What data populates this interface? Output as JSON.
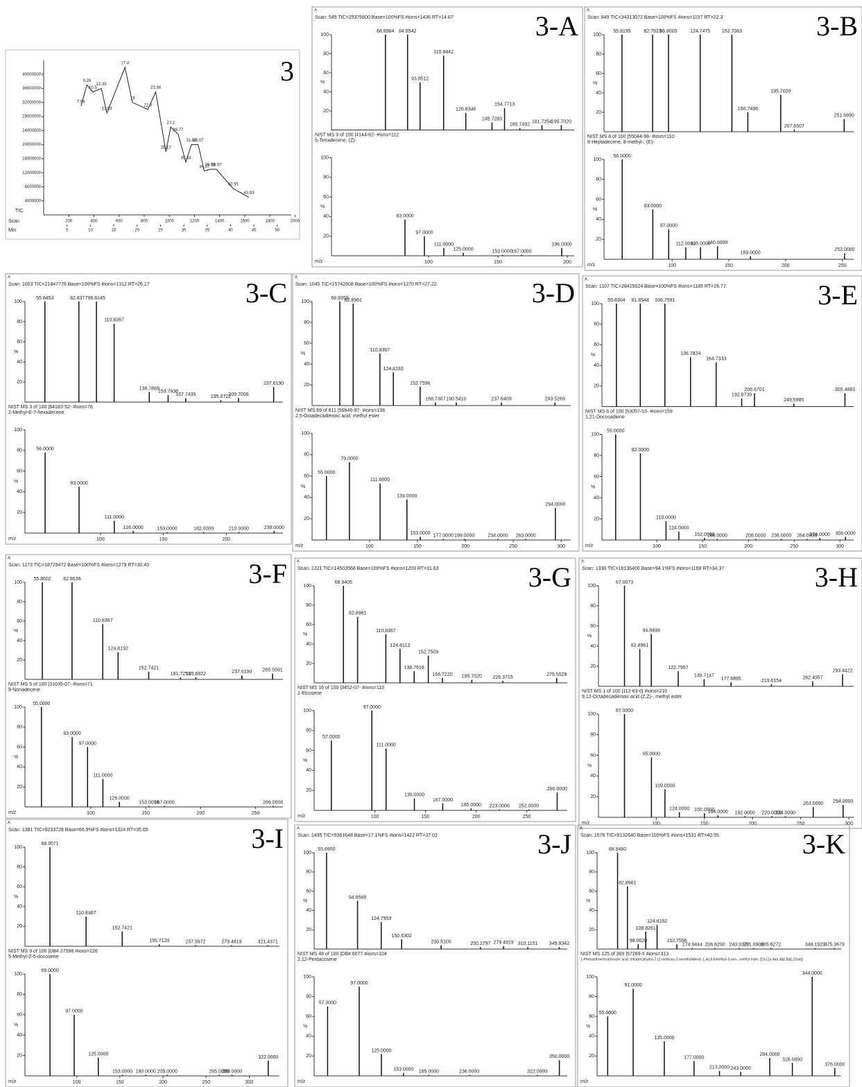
{
  "spectrum_yticks": [
    20,
    40,
    60,
    80,
    100
  ],
  "yaxis_label": "%",
  "xaxis_label": "m/z",
  "corner_label": "A",
  "tic": {
    "label": "3",
    "trace_label": "TIC",
    "scan_label": "Scan",
    "min_label": "Min",
    "xlim": [
      0,
      53
    ],
    "ylim": [
      0,
      44000000
    ],
    "yticks": [
      4000000,
      8000000,
      12000000,
      16000000,
      20000000,
      24000000,
      28000000,
      32000000,
      36000000,
      40000000
    ],
    "xticks": [
      5,
      10,
      15,
      20,
      25,
      30,
      35,
      40,
      45,
      50
    ],
    "scan_lim": [
      0,
      1970
    ],
    "scan_ticks": [
      200,
      400,
      600,
      800,
      1000,
      1200,
      1400,
      1600,
      1800,
      2000
    ],
    "rt": [
      7.98,
      9.26,
      10.5,
      12.35,
      13.53,
      17.4,
      19,
      22.3,
      23.98,
      26.17,
      27.2,
      28.77,
      30.43,
      31.62,
      33.07,
      34.37,
      35.63,
      36.97,
      40.55,
      43.93
    ],
    "intensity": [
      31000000,
      37000000,
      35000000,
      36000000,
      29000000,
      42000000,
      32000000,
      30000000,
      35000000,
      18000000,
      25000000,
      23000000,
      15000000,
      20000000,
      20000000,
      12500000,
      13000000,
      13000000,
      7500000,
      5000000
    ]
  },
  "panels": [
    {
      "label": "3-A",
      "header": "Scan: 545  TIC=25376800  Base=100%FS  #ions=1436  RT=14.67",
      "xlim": [
        30,
        205
      ],
      "xticks": [
        100,
        150,
        200
      ],
      "top": {
        "mz": [
          68.8964,
          84.8542,
          93.8512,
          110.8442,
          126.8346,
          145.7283,
          154.7713,
          165.7492,
          181.7354,
          195.702
        ],
        "intensity": [
          100,
          100,
          50,
          78,
          18,
          8,
          23,
          2,
          5,
          5
        ],
        "labels": [
          "68.8964",
          "84.8542",
          "93.8512",
          "110.8442",
          "126.8346",
          "145.7283",
          "154.7713",
          "165.7492",
          "181.7354",
          "195.7020"
        ]
      },
      "library": "NIST MS 9 of 100 |4144-62-  #ions=112",
      "compound": "5-Tetradecene, (Z)-",
      "bottom": {
        "mz": [
          83,
          97,
          111,
          125,
          153,
          167,
          196
        ],
        "intensity": [
          37,
          20,
          8,
          3,
          1,
          1,
          8
        ],
        "labels": [
          "83.0000",
          "97.0000",
          "111.0000",
          "125.0000",
          "153.0000",
          "167.0000",
          "196.0000"
        ]
      }
    },
    {
      "label": "3-B",
      "header": "Scan: 849  TIC=34313072  Base=100%FS  #ions=1157  RT=22.3",
      "xlim": [
        40,
        260
      ],
      "xticks": [
        100,
        150,
        200,
        250
      ],
      "top": {
        "mz": [
          55.8195,
          82.7923,
          96.8005,
          124.7475,
          152.7063,
          166.7496,
          195.702,
          207.6507,
          251.589
        ],
        "intensity": [
          100,
          100,
          100,
          100,
          100,
          20,
          38,
          2,
          13
        ],
        "labels": [
          "55.8195",
          "82.7923",
          "96.8005",
          "124.7475",
          "152.7063",
          "166.7496",
          "195.7020",
          "207.6507",
          "251.5890"
        ]
      },
      "library": "NIST MS 8 of 100 |55044-98-  #ions=110",
      "compound": "8-Heptadecene, 8-methyl-, (E)-",
      "bottom": {
        "mz": [
          56,
          83,
          97,
          112,
          125,
          140,
          169,
          252
        ],
        "intensity": [
          100,
          50,
          30,
          12,
          12,
          13,
          3,
          6
        ],
        "labels": [
          "56.0000",
          "83.0000",
          "97.0000",
          "112.0000",
          "125.0000",
          "140.0000",
          "169.0000",
          "252.0000"
        ]
      }
    },
    {
      "label": "3-C",
      "header": "Scan: 1003  TIC=21847776  Base=100%FS  #ions=1312  RT=26.17",
      "xlim": [
        40,
        245
      ],
      "xticks": [
        100,
        150,
        200
      ],
      "top": {
        "mz": [
          55.8453,
          82.8377,
          96.8145,
          110.8367,
          138.7869,
          153.7638,
          167.7435,
          195.6722,
          209.7006,
          237.619
        ],
        "intensity": [
          100,
          100,
          100,
          78,
          10,
          7,
          4,
          2,
          4,
          15
        ],
        "labels": [
          "55.8453",
          "82.8377",
          "96.8145",
          "110.8367",
          "138.7869",
          "153.7638",
          "167.7435",
          "195.6722",
          "209.7006",
          "237.6190"
        ]
      },
      "library": "NIST MS 3 of 100 |64183-52-  #ions=76",
      "compound": "2-Methyl-E-7-hexadecene",
      "bottom": {
        "mz": [
          56,
          83,
          111,
          126,
          153,
          182,
          210,
          238
        ],
        "intensity": [
          78,
          45,
          12,
          2,
          1,
          1,
          1,
          2
        ],
        "labels": [
          "56.0000",
          "83.0000",
          "111.0000",
          "126.0000",
          "153.0000",
          "182.0000",
          "210.0000",
          "238.0000"
        ]
      }
    },
    {
      "label": "3-D",
      "header": "Scan: 1045  TIC=15742608  Base=100%FS  #ions=1270  RT=27.22",
      "xlim": [
        40,
        310
      ],
      "xticks": [
        100,
        150,
        200,
        250,
        300
      ],
      "top": {
        "mz": [
          68.9359,
          82.8961,
          110.8367,
          124.8192,
          152.7596,
          168.7307,
          190.541,
          237.6409,
          293.5269
        ],
        "intensity": [
          100,
          98,
          50,
          32,
          18,
          3,
          3,
          3,
          3
        ],
        "labels": [
          "68.9359",
          "82.8961",
          "110.8367",
          "124.8192",
          "152.7596",
          "168.7307",
          "190.5410",
          "237.6409",
          "293.5269"
        ]
      },
      "library": "NIST MS 69 of 611 |56846-97-  #ions=138",
      "compound": "2,5-Octadecadienoic acid, methyl ester",
      "bottom": {
        "mz": [
          55,
          79,
          111,
          139,
          153,
          177,
          199,
          234,
          263,
          294
        ],
        "intensity": [
          60,
          73,
          53,
          38,
          3,
          1,
          1,
          1,
          1,
          30
        ],
        "labels": [
          "55.0000",
          "79.0000",
          "111.0000",
          "139.0000",
          "153.0000",
          "177.0000",
          "199.0000",
          "234.0000",
          "263.0000",
          "294.0000"
        ]
      }
    },
    {
      "label": "3-E",
      "header": "Scan: 1107  TIC=28415024  Base=100%FS  #ions=1185  RT=28.77",
      "xlim": [
        40,
        315
      ],
      "xticks": [
        100,
        150,
        200,
        250,
        300
      ],
      "top": {
        "mz": [
          55.8304,
          81.8548,
          108.7591,
          136.7824,
          164.7333,
          192.6739,
          206.6701,
          249.5985,
          305.4883
        ],
        "intensity": [
          100,
          100,
          100,
          48,
          43,
          8,
          13,
          3,
          13
        ],
        "labels": [
          "55.8304",
          "81.8548",
          "108.7591",
          "136.7824",
          "164.7333",
          "192.6739",
          "206.6701",
          "249.5985",
          "305.4883"
        ]
      },
      "library": "NIST MS 6 of 100 |53057-53-  #ions=159",
      "compound": "1,21-Docosadiene",
      "bottom": {
        "mz": [
          55,
          82,
          110,
          124,
          152,
          166,
          208,
          236,
          264,
          278,
          306
        ],
        "intensity": [
          100,
          82,
          18,
          8,
          2,
          1,
          1,
          1,
          1,
          2,
          3
        ],
        "labels": [
          "55.0000",
          "82.0000",
          "110.0000",
          "124.0000",
          "152.0000",
          "166.0000",
          "208.0000",
          "236.0000",
          "264.0000",
          "278.0000",
          "306.0000"
        ]
      }
    },
    {
      "label": "3-F",
      "header": "Scan: 1173  TIC=18729472  Base=100%FS  #ions=1279  RT=30.43",
      "xlim": [
        40,
        275
      ],
      "xticks": [
        100,
        150,
        200,
        250
      ],
      "top": {
        "mz": [
          55.8602,
          82.8636,
          110.8367,
          124.8192,
          152.7421,
          181.7251,
          195.6822,
          237.619,
          265.5591
        ],
        "intensity": [
          100,
          100,
          57,
          28,
          8,
          2,
          2,
          4,
          6
        ],
        "labels": [
          "55.8602",
          "82.8636",
          "110.8367",
          "124.8192",
          "152.7421",
          "181.7251",
          "195.6822",
          "237.6190",
          "265.5591"
        ]
      },
      "library": "NIST MS 5 of 100 |31035-07-  #ions=71",
      "compound": "9-Nonadecene",
      "bottom": {
        "mz": [
          55,
          83,
          97,
          111,
          126,
          153,
          167,
          266
        ],
        "intensity": [
          100,
          70,
          60,
          28,
          5,
          1,
          1,
          1
        ],
        "labels": [
          "55.0000",
          "83.0000",
          "97.0000",
          "111.0000",
          "126.0000",
          "153.0000",
          "167.0000",
          "266.0000"
        ]
      }
    },
    {
      "label": "3-G",
      "header": "Scan: 1221  TIC=14503568  Base=100%FS  #ions=1203  RT=31.63",
      "xlim": [
        40,
        290
      ],
      "xticks": [
        100,
        150,
        200,
        250
      ],
      "top": {
        "mz": [
          68.9405,
          82.8961,
          110.8367,
          124.8113,
          138.7618,
          152.7509,
          166.722,
          195.702,
          226.3715,
          279.5528
        ],
        "intensity": [
          100,
          68,
          50,
          35,
          12,
          28,
          5,
          3,
          2,
          5
        ],
        "labels": [
          "68.9405",
          "82.8961",
          "110.8367",
          "124.8113",
          "138.7618",
          "152.7509",
          "166.7220",
          "195.7020",
          "226.3715",
          "279.5528"
        ]
      },
      "library": "NIST MS 16 of 100 |3452-07-  #ions=110",
      "compound": "1-Eicosene",
      "bottom": {
        "mz": [
          57,
          97,
          111,
          139,
          167,
          195,
          223,
          252,
          280
        ],
        "intensity": [
          70,
          100,
          62,
          12,
          7,
          2,
          1,
          1,
          18
        ],
        "labels": [
          "57.0000",
          "97.0000",
          "111.0000",
          "139.0000",
          "167.0000",
          "195.0000",
          "223.0000",
          "252.0000",
          "280.0000"
        ]
      }
    },
    {
      "label": "3-H",
      "header": "Scan: 1330  TIC=16136400  Base=94.1%FS  #ions=1168  RT=34.37",
      "xlim": [
        40,
        305
      ],
      "xticks": [
        100,
        150,
        200,
        250,
        300
      ],
      "top": {
        "mz": [
          67.0073,
          82.8961,
          94.8499,
          122.7957,
          149.7147,
          177.6895,
          219.6154,
          262.4957,
          293.4422
        ],
        "intensity": [
          100,
          37,
          52,
          15,
          7,
          4,
          2,
          5,
          12
        ],
        "labels": [
          "67.0073",
          "82.8961",
          "94.8499",
          "122.7957",
          "149.7147",
          "177.6895",
          "219.6154",
          "262.4957",
          "293.4422"
        ]
      },
      "library": "NIST MS 1 of 100 |112-63-0|  #ions=210",
      "compound": "9,12-Octadecadienoic acid (Z,Z)-, methyl ester",
      "bottom": {
        "mz": [
          67,
          95,
          109,
          124,
          150,
          164,
          192,
          220,
          234,
          263,
          294
        ],
        "intensity": [
          100,
          58,
          27,
          5,
          4,
          2,
          1,
          1,
          1,
          10,
          12
        ],
        "labels": [
          "67.0000",
          "95.0000",
          "109.0000",
          "124.0000",
          "150.0000",
          "164.0000",
          "192.0000",
          "220.0000",
          "234.0000",
          "263.0000",
          "294.0000"
        ]
      }
    },
    {
      "label": "3-I",
      "header": "Scan: 1381  TIC=9233728  Base=66.9%FS  #ions=1324  RT=35.65",
      "xlim": [
        40,
        335
      ],
      "xticks": [
        100,
        150,
        200,
        250,
        300
      ],
      "top": {
        "mz": [
          68.9571,
          110.8367,
          152.7421,
          195.712,
          237.5972,
          279.4819,
          321.4371
        ],
        "intensity": [
          100,
          30,
          15,
          2,
          1,
          1,
          1
        ],
        "labels": [
          "68.9571",
          "110.8367",
          "152.7421",
          "195.7120",
          "237.5972",
          "279.4819",
          "321.4371"
        ]
      },
      "library": "NIST MS 9 of 100 |DB# 27598  #ions=226",
      "compound": "5-Methyl-Z-5-docosene",
      "bottom": {
        "mz": [
          69,
          97,
          125,
          153,
          180,
          205,
          265,
          280,
          322
        ],
        "intensity": [
          100,
          60,
          18,
          1,
          1,
          1,
          1,
          1,
          15
        ],
        "labels": [
          "69.0000",
          "97.0000",
          "125.0000",
          "153.0000",
          "180.0000",
          "205.0000",
          "265.0000",
          "280.0000",
          "322.0000"
        ]
      }
    },
    {
      "label": "3-J",
      "header": "Scan: 1435  TIC=5361648  Base=17.1%FS  #ions=1422  RT=37.02",
      "xlim": [
        40,
        360
      ],
      "top": {
        "mz": [
          55.695,
          94.8568,
          124.7953,
          150.6302,
          200.51,
          250.2797,
          279.4819,
          310.1151,
          349.8342
        ],
        "intensity": [
          100,
          50,
          28,
          10,
          4,
          2,
          3,
          2,
          2
        ],
        "labels": [
          "55.6950",
          "94.8568",
          "124.7953",
          "150.6302",
          "200.5100",
          "250.2797",
          "279.4819",
          "310.1151",
          "349.8342"
        ]
      },
      "library": "NIST MS 48 of 100 |DB# 6077  #ions=104",
      "compound": "2,12-Pentacosene",
      "bottom": {
        "mz": [
          57,
          97,
          125,
          153,
          185,
          236,
          322,
          350
        ],
        "intensity": [
          70,
          90,
          22,
          3,
          1,
          1,
          1,
          16
        ],
        "labels": [
          "57.0000",
          "97.0000",
          "125.0000",
          "153.0000",
          "185.0000",
          "236.0000",
          "322.0000",
          "350.0000"
        ]
      }
    },
    {
      "label": "3-K",
      "header": "Scan: 1576  TIC=9132640  Base=100%FS  #ions=1531  RT=40.55",
      "xlim": [
        40,
        385
      ],
      "top": {
        "mz": [
          68.946,
          82.8961,
          98.062,
          108.8261,
          124.8192,
          152.7596,
          174.6444,
          206.629,
          240.9377,
          261.0906,
          285.6272,
          348.1929,
          375.3679
        ],
        "intensity": [
          100,
          65,
          5,
          18,
          25,
          5,
          1,
          1,
          1,
          1,
          1,
          1,
          1
        ],
        "labels": [
          "68.9460",
          "82.8961",
          "98.0620",
          "108.8261",
          "124.8192",
          "152.7596",
          "174.6444",
          "206.6290",
          "240.9377",
          "261.0906",
          "285.6272",
          "348.1929",
          "375.3679"
        ]
      },
      "library": "NIST MS 125 of 369 |57289-5  #ions=313",
      "compound": "1-Phenanthrenecarboxylic acid, tetradecahydro-7-(2-methoxy-2-oxoethylidene)-1,4a,8-trimethyl-9-oxo-, methyl ester, [1S-(1α,4aα,4bβ,8aβ,10aα)]",
      "bottom": {
        "mz": [
          55,
          91,
          135,
          177,
          213,
          243,
          284,
          316,
          344,
          376
        ],
        "intensity": [
          60,
          88,
          35,
          15,
          5,
          4,
          18,
          13,
          100,
          8
        ],
        "labels": [
          "55.0000",
          "91.0000",
          "135.0000",
          "177.0000",
          "213.0000",
          "243.0000",
          "284.0000",
          "316.0000",
          "344.0000",
          "376.0000"
        ]
      }
    }
  ]
}
